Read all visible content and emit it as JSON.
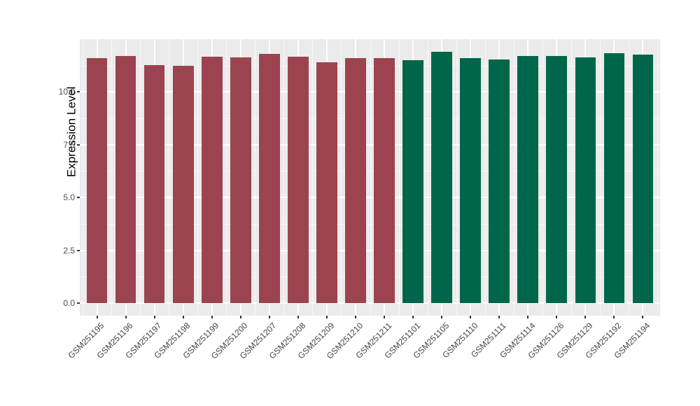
{
  "chart_data": {
    "type": "bar",
    "title": "",
    "xlabel": "",
    "ylabel": "Expression Level",
    "categories": [
      "GSM251195",
      "GSM251196",
      "GSM251197",
      "GSM251198",
      "GSM251199",
      "GSM251200",
      "GSM251207",
      "GSM251208",
      "GSM251209",
      "GSM251210",
      "GSM251211",
      "GSM251101",
      "GSM251105",
      "GSM251110",
      "GSM251111",
      "GSM251114",
      "GSM251126",
      "GSM251129",
      "GSM251192",
      "GSM251194"
    ],
    "values": [
      11.59,
      11.69,
      11.28,
      11.25,
      11.66,
      11.64,
      11.8,
      11.66,
      11.4,
      11.62,
      11.62,
      11.5,
      11.9,
      11.59,
      11.55,
      11.7,
      11.7,
      11.64,
      11.84,
      11.76
    ],
    "bar_groups": [
      "red",
      "red",
      "red",
      "red",
      "red",
      "red",
      "red",
      "red",
      "red",
      "red",
      "red",
      "green",
      "green",
      "green",
      "green",
      "green",
      "green",
      "green",
      "green",
      "green"
    ],
    "group_colors": {
      "red": "#9B4450",
      "green": "#00664B"
    },
    "ytick_labels": [
      "0.0",
      "2.5",
      "5.0",
      "7.5",
      "10.0"
    ],
    "ytick_values": [
      0,
      2.5,
      5,
      7.5,
      10
    ],
    "yminor_values": [
      1.25,
      3.75,
      6.25,
      8.75,
      11.25
    ],
    "ylim": [
      -0.6,
      12.5
    ],
    "grid": true,
    "legend": false,
    "panel_bg": "#EBEBEB",
    "grid_major_color": "#FFFFFF",
    "grid_minor_color": "rgba(255,255,255,0.6)",
    "x_tick_rotation": 45
  }
}
